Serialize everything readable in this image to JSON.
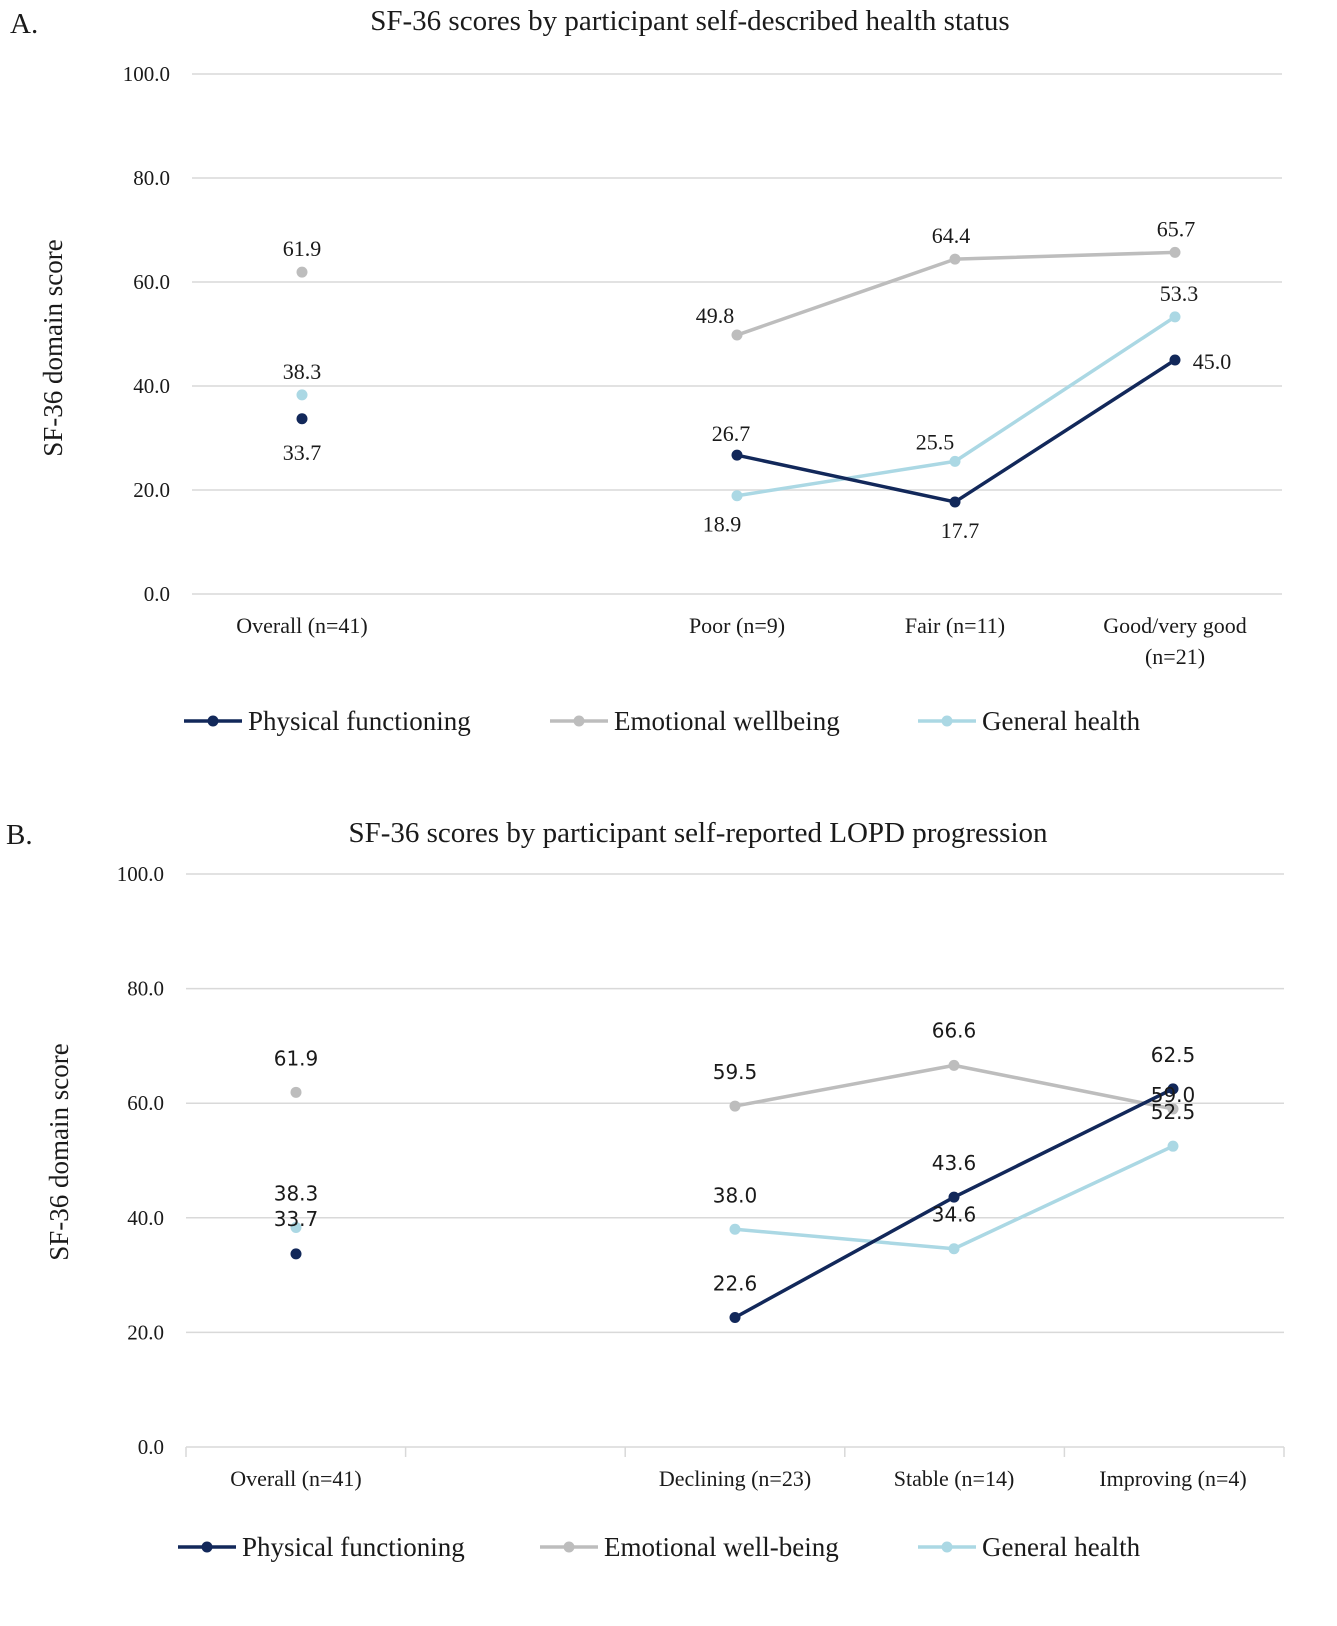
{
  "chart_data": [
    {
      "panel": "A.",
      "type": "line",
      "title": "SF-36 scores by participant self-described health status",
      "xlabel": "",
      "ylabel": "SF-36 domain score",
      "ylim": [
        0,
        100
      ],
      "yticks": [
        "0.0",
        "20.0",
        "40.0",
        "60.0",
        "80.0",
        "100.0"
      ],
      "grid": true,
      "legend_position": "bottom",
      "categories": [
        "Overall (n=41)",
        "",
        "Poor (n=9)",
        "Fair (n=11)",
        "Good/very good (n=21)"
      ],
      "category_lines": [
        [
          "Overall (n=41)"
        ],
        [
          ""
        ],
        [
          "Poor (n=9)"
        ],
        [
          "Fair (n=11)"
        ],
        [
          "Good/very good",
          "(n=21)"
        ]
      ],
      "series": [
        {
          "name": "Physical functioning",
          "color": "#12285a",
          "values": [
            33.7,
            null,
            26.7,
            17.7,
            45.0
          ],
          "labels": [
            "33.7",
            "",
            "26.7",
            "17.7",
            "45.0"
          ]
        },
        {
          "name": "Emotional wellbeing",
          "color": "#bdbdbd",
          "values": [
            61.9,
            null,
            49.8,
            64.4,
            65.7
          ],
          "labels": [
            "61.9",
            "",
            "49.8",
            "64.4",
            "65.7"
          ]
        },
        {
          "name": "General health",
          "color": "#abd8e4",
          "values": [
            38.3,
            null,
            18.9,
            25.5,
            53.3
          ],
          "labels": [
            "38.3",
            "",
            "18.9",
            "25.5",
            "53.3"
          ]
        }
      ]
    },
    {
      "panel": "B.",
      "type": "line",
      "title": "SF-36 scores by participant self-reported LOPD progression",
      "xlabel": "",
      "ylabel": "SF-36 domain score",
      "ylim": [
        0,
        100
      ],
      "yticks": [
        "0.0",
        "20.0",
        "40.0",
        "60.0",
        "80.0",
        "100.0"
      ],
      "grid": true,
      "legend_position": "bottom",
      "categories": [
        "Overall (n=41)",
        "",
        "Declining (n=23)",
        "Stable (n=14)",
        "Improving (n=4)"
      ],
      "category_lines": [
        [
          "Overall (n=41)"
        ],
        [
          ""
        ],
        [
          "Declining (n=23)"
        ],
        [
          "Stable (n=14)"
        ],
        [
          "Improving (n=4)"
        ]
      ],
      "series": [
        {
          "name": "Physical functioning",
          "color": "#12285a",
          "values": [
            33.7,
            null,
            22.6,
            43.6,
            62.5
          ],
          "labels": [
            "33.7",
            "",
            "22.6",
            "43.6",
            "62.5"
          ]
        },
        {
          "name": "Emotional well-being",
          "color": "#bdbdbd",
          "values": [
            61.9,
            null,
            59.5,
            66.6,
            59.0
          ],
          "labels": [
            "61.9",
            "",
            "59.5",
            "66.6",
            "59.0"
          ]
        },
        {
          "name": "General health",
          "color": "#abd8e4",
          "values": [
            38.3,
            null,
            38.0,
            34.6,
            52.5
          ],
          "labels": [
            "38.3",
            "",
            "38.0",
            "34.6",
            "52.5"
          ]
        }
      ]
    }
  ]
}
